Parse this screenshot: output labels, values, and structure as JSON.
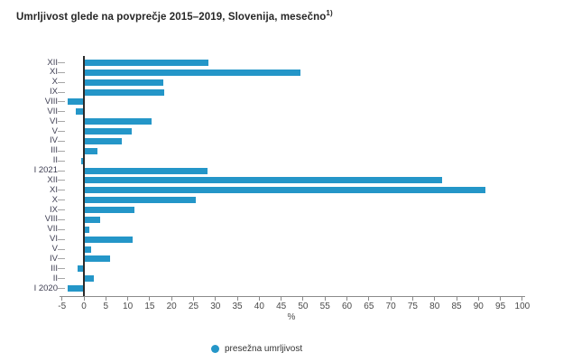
{
  "title": {
    "text": "Umrljivost glede na povprečje 2015–2019, Slovenija, mesečno",
    "superscript": "1)"
  },
  "legend": {
    "label": "presežna umrljivost"
  },
  "colors": {
    "bar": "#2496c8",
    "zero_axis": "#2b2b2b",
    "bottom_axis": "#8a8a8a",
    "x_tick": "#8a8a8a",
    "y_tick": "#a6a6a6",
    "legend_marker": "#2496c8"
  },
  "chart_data": {
    "type": "bar",
    "orientation": "horizontal",
    "title": "Umrljivost glede na povprečje 2015–2019, Slovenija, mesečno 1)",
    "xlabel": "%",
    "ylabel": "",
    "xlim": [
      -5,
      100
    ],
    "grid": false,
    "legend_position": "bottom",
    "series_name": "presežna umrljivost",
    "categories": [
      "XII",
      "XI",
      "X",
      "IX",
      "VIII",
      "VII",
      "VI",
      "V",
      "IV",
      "III",
      "II",
      "I 2021",
      "XII",
      "XI",
      "X",
      "IX",
      "VIII",
      "VII",
      "VI",
      "V",
      "IV",
      "III",
      "II",
      "I 2020"
    ],
    "values": [
      28.3,
      49.2,
      18.1,
      18.3,
      -3.6,
      -1.7,
      15.4,
      10.8,
      8.6,
      2.9,
      -0.5,
      28.0,
      81.5,
      91.4,
      25.5,
      11.4,
      3.7,
      1.2,
      11.0,
      1.5,
      5.8,
      -1.3,
      2.1,
      -3.5
    ],
    "xticks": [
      -5,
      0,
      5,
      10,
      15,
      20,
      25,
      30,
      35,
      40,
      45,
      50,
      55,
      60,
      65,
      70,
      75,
      80,
      85,
      90,
      95,
      100
    ]
  }
}
